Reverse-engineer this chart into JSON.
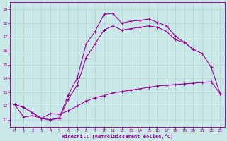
{
  "xlabel": "Windchill (Refroidissement éolien,°C)",
  "background_color": "#cbe8e8",
  "line_color": "#990099",
  "xlim": [
    -0.5,
    23.5
  ],
  "ylim": [
    10.5,
    19.5
  ],
  "xticks": [
    0,
    1,
    2,
    3,
    4,
    5,
    6,
    7,
    8,
    9,
    10,
    11,
    12,
    13,
    14,
    15,
    16,
    17,
    18,
    19,
    20,
    21,
    22,
    23
  ],
  "yticks": [
    11,
    12,
    13,
    14,
    15,
    16,
    17,
    18,
    19
  ],
  "curve1_x": [
    0,
    1,
    2,
    3,
    4,
    5,
    6,
    7,
    8,
    9,
    10,
    11,
    12,
    13,
    14,
    15,
    16,
    17,
    18,
    19,
    20,
    21,
    22,
    23
  ],
  "curve1_y": [
    12.1,
    11.9,
    11.5,
    11.1,
    11.0,
    11.15,
    12.8,
    14.0,
    16.5,
    17.4,
    18.65,
    18.7,
    18.0,
    18.15,
    18.2,
    18.3,
    18.05,
    17.8,
    17.05,
    16.6,
    16.1,
    15.8,
    14.8,
    12.9
  ],
  "curve2_x": [
    0,
    1,
    2,
    3,
    4,
    5,
    6,
    7,
    8,
    9,
    10,
    11,
    12,
    13,
    14,
    15,
    16,
    17,
    18,
    19,
    20
  ],
  "curve2_y": [
    12.1,
    11.9,
    11.5,
    11.1,
    11.0,
    11.1,
    12.5,
    13.5,
    15.5,
    16.5,
    17.5,
    17.8,
    17.5,
    17.6,
    17.7,
    17.8,
    17.7,
    17.4,
    16.8,
    16.6,
    16.1
  ],
  "curve3_x": [
    0,
    1,
    2,
    3,
    4,
    5,
    6,
    7,
    8,
    9,
    10,
    11,
    12,
    13,
    14,
    15,
    16,
    17,
    18,
    19,
    20,
    21,
    22,
    23
  ],
  "curve3_y": [
    12.1,
    11.2,
    11.3,
    11.1,
    11.45,
    11.4,
    11.65,
    12.0,
    12.35,
    12.6,
    12.75,
    12.95,
    13.05,
    13.15,
    13.25,
    13.35,
    13.45,
    13.5,
    13.55,
    13.6,
    13.65,
    13.7,
    13.75,
    12.9
  ]
}
